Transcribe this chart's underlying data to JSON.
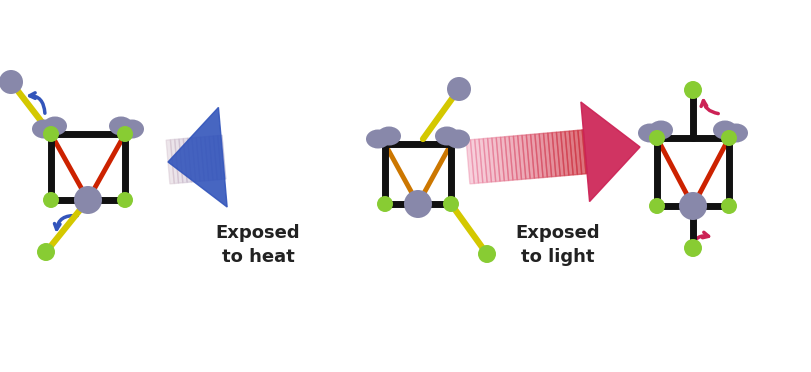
{
  "bg_color": "#ffffff",
  "sn_color": "#8888aa",
  "se_color": "#88cc33",
  "bond_black": "#111111",
  "bond_red": "#cc2200",
  "bond_yellow": "#d4c800",
  "bond_orange": "#cc7700",
  "arrow_blue_dark": "#3355bb",
  "arrow_blue_light": "#aabbee",
  "arrow_pink_dark": "#cc2255",
  "arrow_pink_light": "#ffbbcc",
  "text_color": "#222222",
  "label_heat": "Exposed\nto heat",
  "label_light": "Exposed\nto light",
  "label_fontsize": 13,
  "label_fontweight": "bold"
}
